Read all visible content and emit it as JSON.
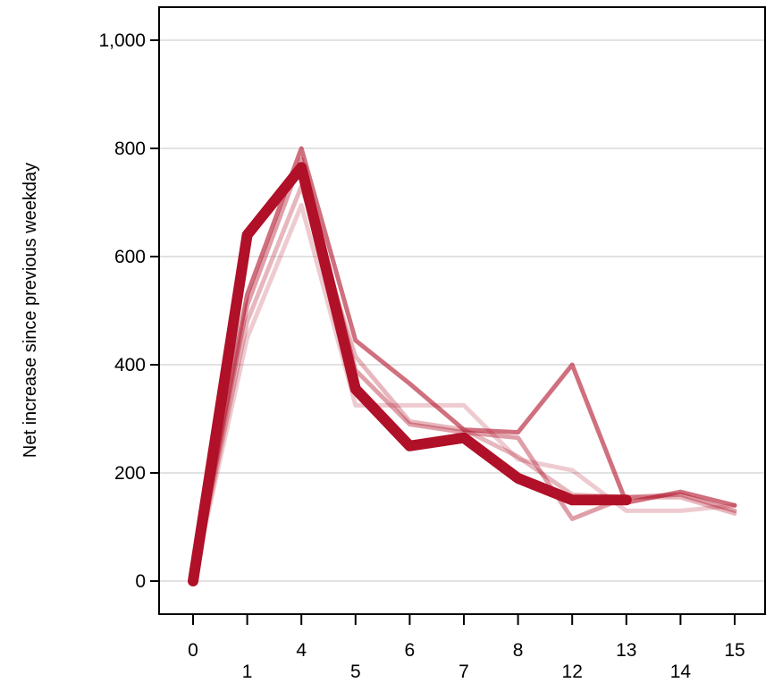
{
  "chart_data": {
    "type": "line",
    "title": "",
    "xlabel": "",
    "ylabel": "Net increase since previous weekday",
    "categories": [
      "0",
      "1",
      "4",
      "5",
      "6",
      "7",
      "8",
      "12",
      "13",
      "14",
      "15"
    ],
    "ylim": [
      0,
      1000
    ],
    "yticks": [
      0,
      200,
      400,
      600,
      800,
      1000
    ],
    "ytick_labels": [
      "0",
      "200",
      "400",
      "600",
      "800",
      "1,000"
    ],
    "grid": "horizontal",
    "legend": "none",
    "line_color": "#B01028",
    "series": [
      {
        "values": [
          0,
          450,
          695,
          325,
          325,
          325,
          225,
          205,
          130,
          130,
          140
        ],
        "opacity": 0.22,
        "width": 5
      },
      {
        "values": [
          0,
          510,
          780,
          390,
          290,
          275,
          265,
          115,
          155,
          160,
          130
        ],
        "opacity": 0.4,
        "width": 5
      },
      {
        "values": [
          0,
          530,
          800,
          445,
          365,
          280,
          275,
          400,
          145,
          165,
          140
        ],
        "opacity": 0.6,
        "width": 5
      },
      {
        "values": [
          0,
          480,
          730,
          415,
          295,
          280,
          230,
          160,
          155,
          155,
          125
        ],
        "opacity": 0.3,
        "width": 5
      },
      {
        "values": [
          0,
          640,
          765,
          355,
          250,
          265,
          190,
          150,
          150,
          null,
          null
        ],
        "opacity": 1.0,
        "width": 12
      }
    ]
  }
}
